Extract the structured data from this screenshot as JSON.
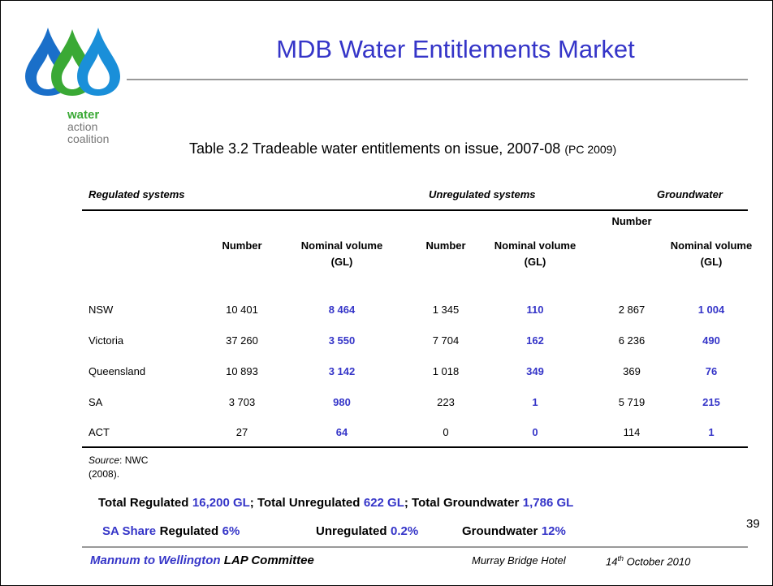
{
  "title": "MDB Water Entitlements Market",
  "logo": {
    "lines": [
      "water",
      "action",
      "coalition"
    ]
  },
  "caption": {
    "text": "Table 3.2 Tradeable water entitlements on issue, 2007-08",
    "citation": "(PC 2009)"
  },
  "table": {
    "groups": [
      "Regulated systems",
      "Unregulated systems",
      "Groundwater"
    ],
    "columns": [
      "Number",
      "Nominal volume (GL)",
      "Number",
      "Nominal volume (GL)",
      "Number",
      "Nominal volume (GL)"
    ],
    "rows": [
      [
        "NSW",
        "10 401",
        "8 464",
        "1 345",
        "110",
        "2 867",
        "1 004"
      ],
      [
        "Victoria",
        "37 260",
        "3 550",
        "7 704",
        "162",
        "6 236",
        "490"
      ],
      [
        "Queensland",
        "10 893",
        "3 142",
        "1 018",
        "349",
        "369",
        "76"
      ],
      [
        "SA",
        "3 703",
        "980",
        "223",
        "1",
        "5 719",
        "215"
      ],
      [
        "ACT",
        "27",
        "64",
        "0",
        "0",
        "114",
        "1"
      ]
    ]
  },
  "source": {
    "label": "Source",
    "text": ": NWC (2008)."
  },
  "summary": {
    "line1": [
      {
        "text": "Total Regulated"
      },
      {
        "text": "16,200 GL",
        "highlight": true
      },
      {
        "text": "; Total Unregulated"
      },
      {
        "text": "622 GL",
        "highlight": true
      },
      {
        "text": "; Total Groundwater"
      },
      {
        "text": "1,786 GL",
        "highlight": true
      }
    ],
    "line2": [
      [
        {
          "text": "SA Share",
          "highlight": true
        },
        {
          "text": "Regulated"
        },
        {
          "text": "6%",
          "highlight": true
        }
      ],
      [
        {
          "text": "Unregulated"
        },
        {
          "text": "0.2%",
          "highlight": true
        }
      ],
      [
        {
          "text": "Groundwater"
        },
        {
          "text": "12%",
          "highlight": true
        }
      ]
    ]
  },
  "page_number": "39",
  "footer": {
    "org_highlight": "Mannum to Wellington",
    "org_rest": "LAP Committee",
    "venue": "Murray Bridge Hotel",
    "date_day": "14",
    "date_suffix": "th",
    "date_rest": " October 2010"
  }
}
